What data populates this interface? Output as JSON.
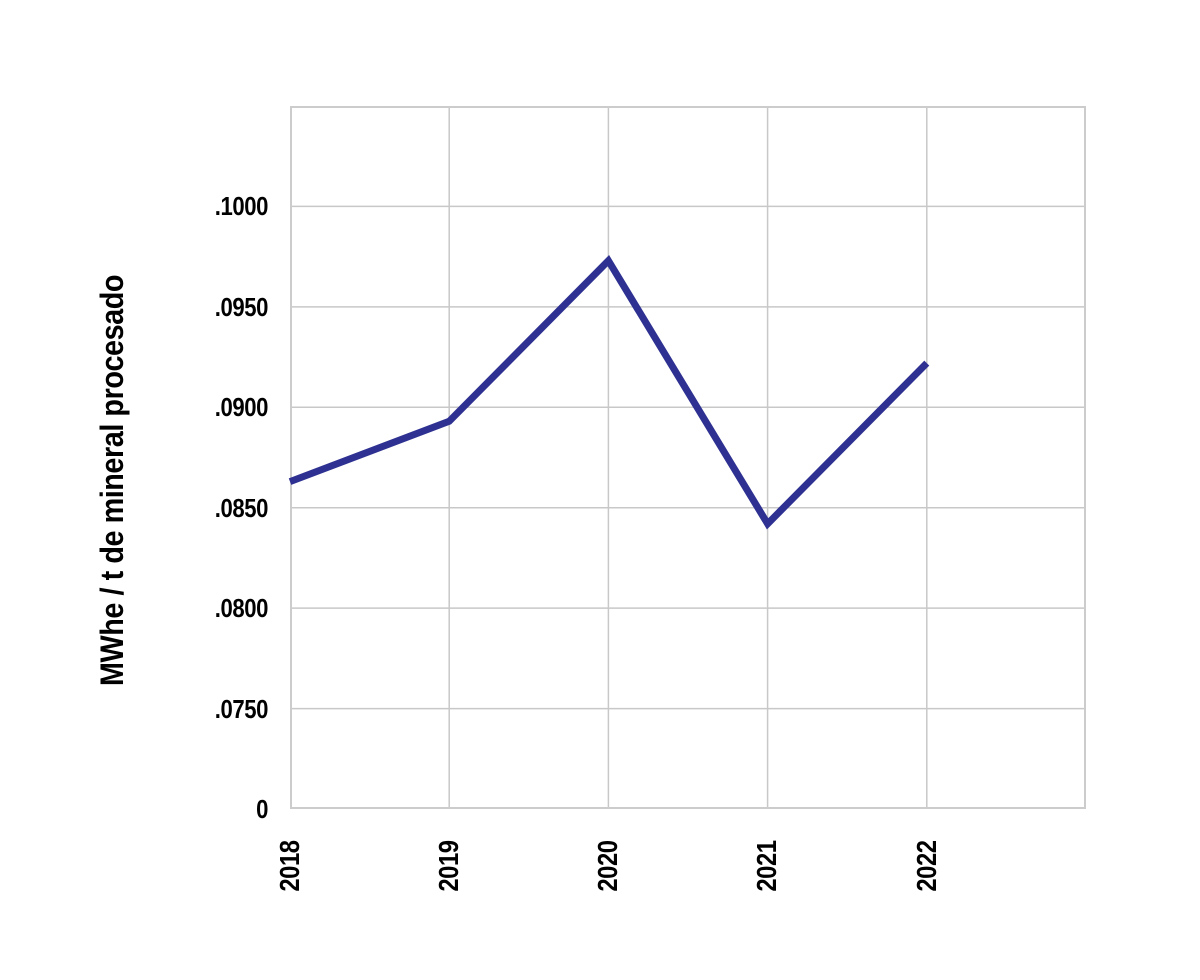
{
  "chart_data": {
    "type": "line",
    "title": "",
    "xlabel": "",
    "ylabel": "MWhe / t de mineral procesado",
    "categories": [
      "2018",
      "2019",
      "2020",
      "2021",
      "2022"
    ],
    "series": [
      {
        "name": "MWhe / t de mineral procesado",
        "values": [
          0.0863,
          0.0893,
          0.0973,
          0.0842,
          0.0922
        ]
      }
    ],
    "y_ticks": [
      {
        "label": ".1000",
        "value": 0.1
      },
      {
        "label": ".0950",
        "value": 0.095
      },
      {
        "label": ".0900",
        "value": 0.09
      },
      {
        "label": ".0850",
        "value": 0.085
      },
      {
        "label": ".0800",
        "value": 0.08
      },
      {
        "label": ".0750",
        "value": 0.075
      },
      {
        "label": "0",
        "value": null
      }
    ],
    "y_axis_top_value": 0.105,
    "y_axis_note": "axis breaks between .0750 and 0; 0 sits on the baseline",
    "ylim": [
      0.075,
      0.105
    ],
    "grid": true,
    "legend": false,
    "colors": {
      "line": "#2e3191",
      "grid": "#c8c8c8",
      "frame": "#cccccc",
      "text": "#000000",
      "background": "#ffffff"
    }
  }
}
